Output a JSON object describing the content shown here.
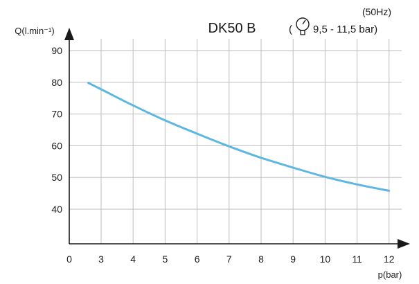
{
  "chart_data": {
    "type": "line",
    "title": "DK50 B",
    "subtitle_top": "(50Hz)",
    "pressure_prefix": "(",
    "pressure_range": "9,5 - 11,5 bar)",
    "pressure_icon": "pressure-gauge-icon",
    "ylabel": "Q(l.min⁻¹)",
    "xlabel": "p(bar)",
    "x_tick_labels": [
      "0",
      "3",
      "4",
      "5",
      "6",
      "7",
      "8",
      "9",
      "10",
      "11",
      "12"
    ],
    "y_tick_labels": [
      "90",
      "80",
      "70",
      "60",
      "50",
      "40"
    ],
    "xlim": [
      2,
      12.5
    ],
    "ylim": [
      34,
      94
    ],
    "grid": true,
    "series": [
      {
        "color": "#5db7e2",
        "x": [
          2.6,
          3,
          4,
          5,
          6,
          7,
          8,
          9,
          10,
          11,
          12
        ],
        "y": [
          79.8,
          77.8,
          72.7,
          68.0,
          63.8,
          59.8,
          56.2,
          53.1,
          50.2,
          47.8,
          45.8
        ]
      }
    ]
  }
}
